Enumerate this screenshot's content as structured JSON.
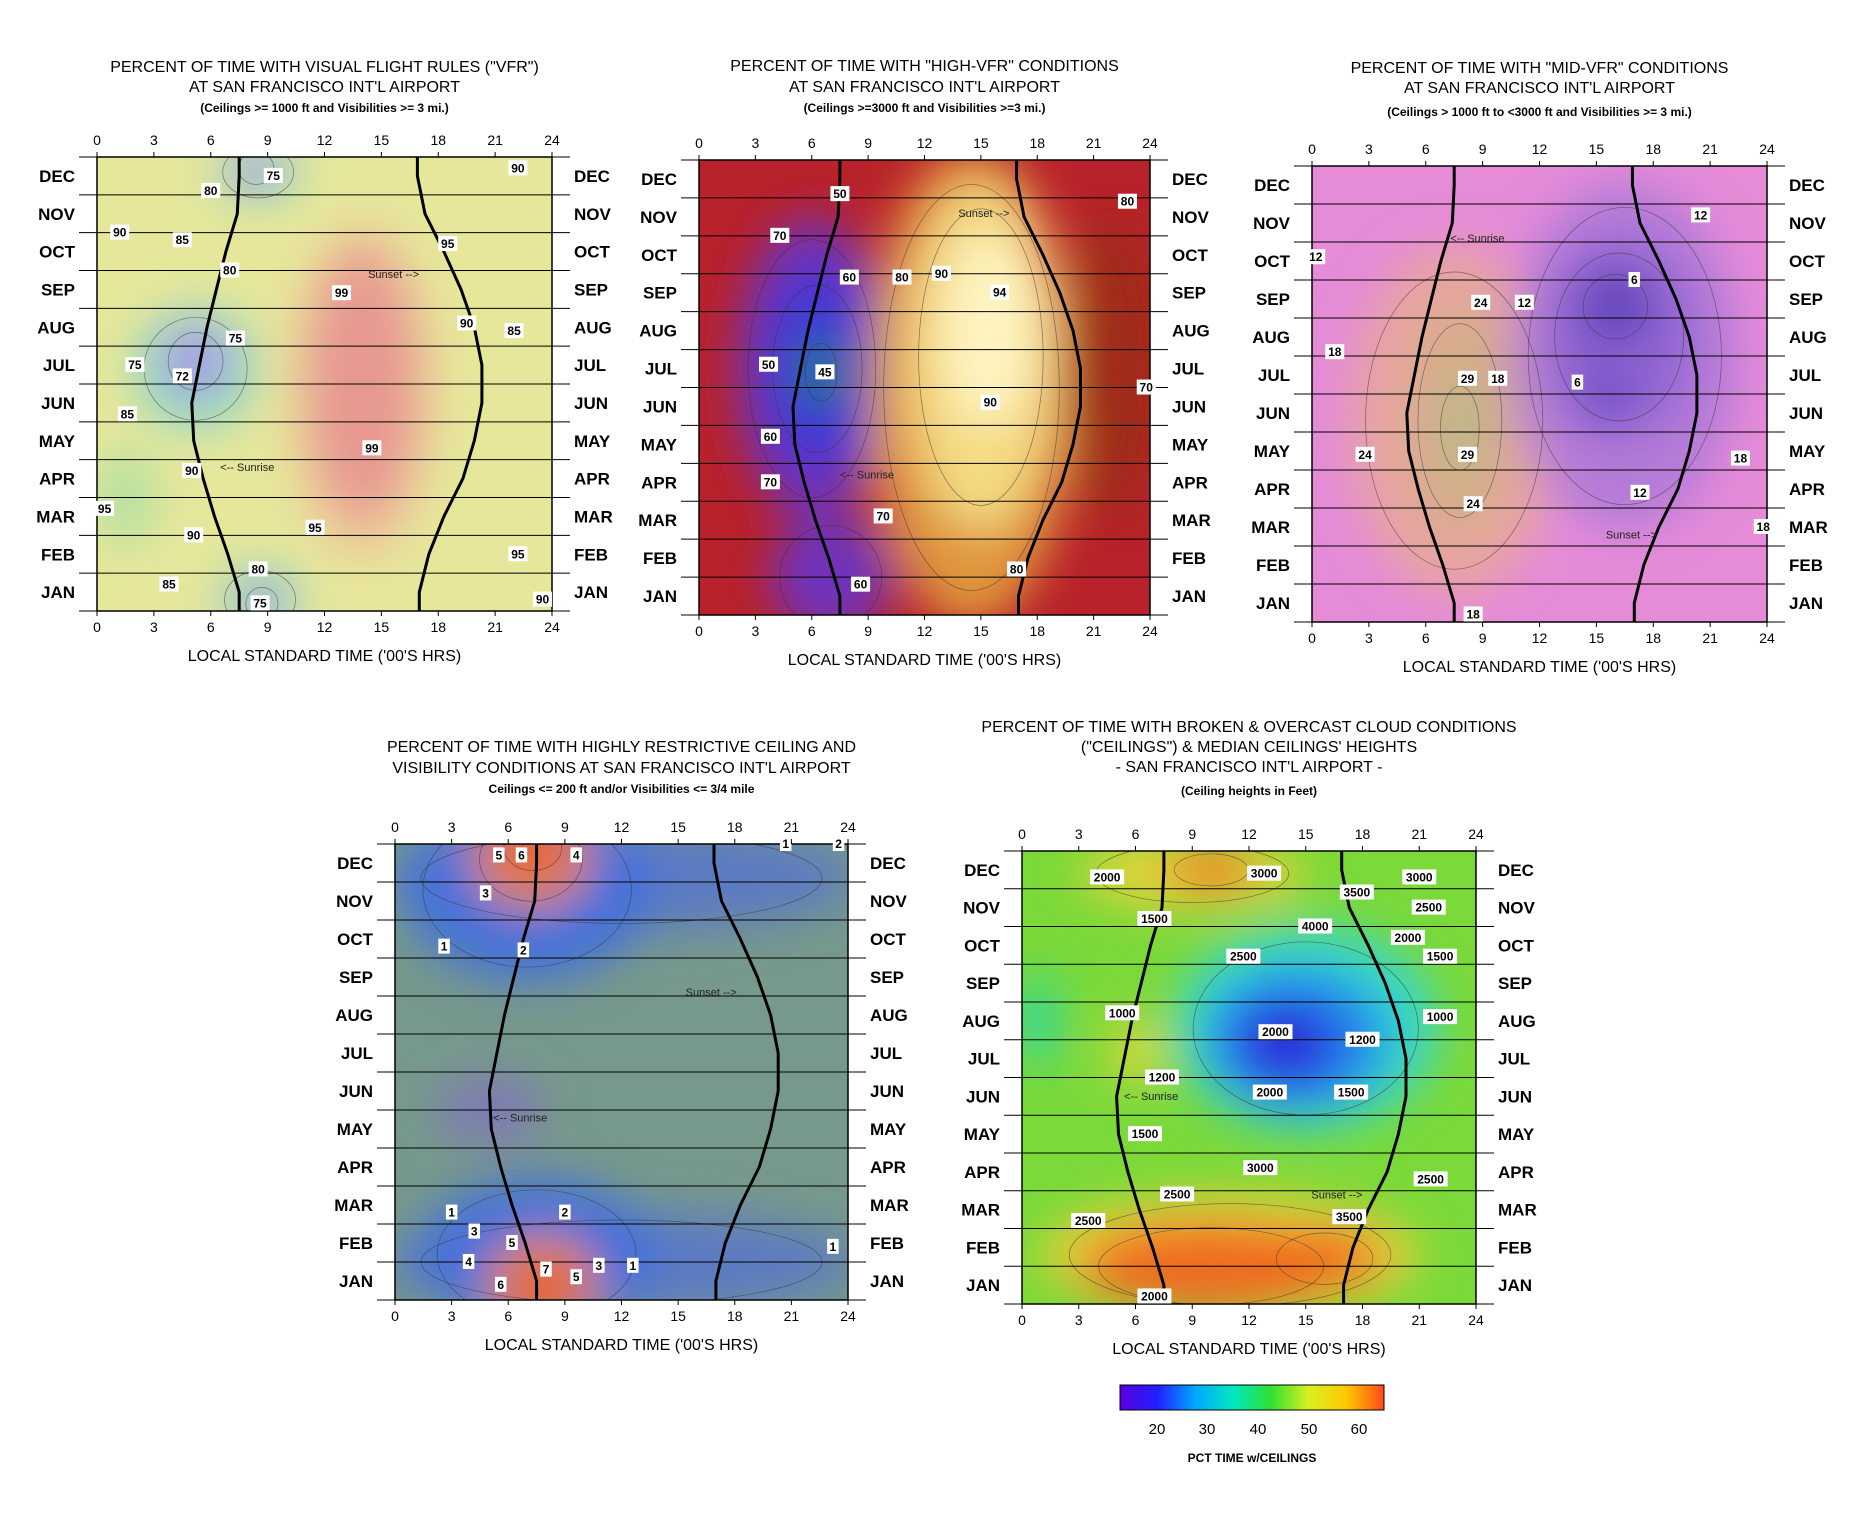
{
  "months": [
    "DEC",
    "NOV",
    "OCT",
    "SEP",
    "AUG",
    "JUL",
    "JUN",
    "MAY",
    "APR",
    "MAR",
    "FEB",
    "JAN"
  ],
  "hour_ticks": [
    "0",
    "3",
    "6",
    "9",
    "12",
    "15",
    "18",
    "21",
    "24"
  ],
  "colors": {
    "sun_line": "#000000",
    "grid_line": "#000000",
    "label_bg": "#ffffff"
  },
  "panels": [
    {
      "id": "vfr",
      "title_lines": [
        "PERCENT OF TIME WITH VISUAL FLIGHT RULES (\"VFR\")",
        "AT SAN FRANCISCO INT'L AIRPORT"
      ],
      "subtitle": "(Ceilings >= 1000 ft and Visibilities >= 3 mi.)",
      "xlabel": "LOCAL STANDARD TIME ('00'S HRS)",
      "sunrise_label": "<-- Sunrise",
      "sunset_label": "Sunset -->",
      "sunrise_text_at": [
        6.5,
        3.7
      ],
      "sunset_text_at": [
        14.3,
        8.8
      ],
      "palette": {
        "base": "#e6e79a",
        "blobs": [
          {
            "x": 5.2,
            "y": 6.4,
            "rx": 3.2,
            "ry": 1.6,
            "c": "#7fd6cc"
          },
          {
            "x": 5.2,
            "y": 6.6,
            "rx": 1.7,
            "ry": 0.9,
            "c": "#b48de8"
          },
          {
            "x": 8.5,
            "y": 11.6,
            "rx": 2.2,
            "ry": 0.8,
            "c": "#8fd6c8"
          },
          {
            "x": 8.4,
            "y": 11.7,
            "rx": 1.1,
            "ry": 0.5,
            "c": "#a98be6"
          },
          {
            "x": 8.6,
            "y": 0.3,
            "rx": 2.2,
            "ry": 0.9,
            "c": "#8fd6c8"
          },
          {
            "x": 8.7,
            "y": 0.2,
            "rx": 1.0,
            "ry": 0.5,
            "c": "#a98be6"
          },
          {
            "x": 14.0,
            "y": 5.8,
            "rx": 3.8,
            "ry": 4.4,
            "c": "#eec29a"
          },
          {
            "x": 14.0,
            "y": 6.0,
            "rx": 2.8,
            "ry": 3.6,
            "c": "#e79690"
          },
          {
            "x": 1.5,
            "y": 3.0,
            "rx": 1.6,
            "ry": 1.3,
            "c": "#b0e0a4"
          }
        ]
      },
      "contour_labels": [
        {
          "t": "80",
          "x": 6.0,
          "y": 11.1
        },
        {
          "t": "90",
          "x": 1.2,
          "y": 10.0
        },
        {
          "t": "85",
          "x": 4.5,
          "y": 9.8
        },
        {
          "t": "80",
          "x": 7.0,
          "y": 9.0
        },
        {
          "t": "99",
          "x": 12.9,
          "y": 8.4
        },
        {
          "t": "75",
          "x": 7.3,
          "y": 7.2
        },
        {
          "t": "75",
          "x": 2.0,
          "y": 6.5
        },
        {
          "t": "72",
          "x": 4.5,
          "y": 6.2
        },
        {
          "t": "85",
          "x": 1.6,
          "y": 5.2
        },
        {
          "t": "99",
          "x": 14.5,
          "y": 4.3
        },
        {
          "t": "90",
          "x": 5.0,
          "y": 3.7
        },
        {
          "t": "95",
          "x": 0.4,
          "y": 2.7
        },
        {
          "t": "95",
          "x": 11.5,
          "y": 2.2
        },
        {
          "t": "90",
          "x": 5.1,
          "y": 2.0
        },
        {
          "t": "80",
          "x": 8.5,
          "y": 1.1
        },
        {
          "t": "85",
          "x": 3.8,
          "y": 0.7
        },
        {
          "t": "75",
          "x": 8.6,
          "y": 0.2
        },
        {
          "t": "95",
          "x": 22.2,
          "y": 1.5
        },
        {
          "t": "90",
          "x": 23.5,
          "y": 0.3
        },
        {
          "t": "95",
          "x": 18.5,
          "y": 9.7
        },
        {
          "t": "90",
          "x": 19.5,
          "y": 7.6
        },
        {
          "t": "85",
          "x": 22.0,
          "y": 7.4
        },
        {
          "t": "90",
          "x": 22.2,
          "y": 11.7
        },
        {
          "t": "75",
          "x": 9.3,
          "y": 11.5
        }
      ]
    },
    {
      "id": "high-vfr",
      "title_lines": [
        "PERCENT OF TIME WITH \"HIGH-VFR\" CONDITIONS",
        "AT SAN FRANCISCO INT'L AIRPORT"
      ],
      "subtitle": "(Ceilings >=3000 ft and Visibilities >=3 mi.)",
      "xlabel": "LOCAL STANDARD TIME ('00'S HRS)",
      "sunrise_label": "<-- Sunrise",
      "sunset_label": "Sunset -->",
      "sunrise_text_at": [
        7.5,
        3.6
      ],
      "sunset_text_at": [
        13.8,
        10.5
      ],
      "palette": {
        "base": "#b8222a",
        "blobs": [
          {
            "x": 6.0,
            "y": 6.5,
            "rx": 4.0,
            "ry": 4.0,
            "c": "#6a33c8"
          },
          {
            "x": 6.3,
            "y": 6.5,
            "rx": 2.8,
            "ry": 2.6,
            "c": "#3b38d8"
          },
          {
            "x": 6.5,
            "y": 6.4,
            "rx": 1.0,
            "ry": 0.9,
            "c": "#0a8a58"
          },
          {
            "x": 7.0,
            "y": 1.0,
            "rx": 3.2,
            "ry": 1.6,
            "c": "#6a33c8"
          },
          {
            "x": 14.5,
            "y": 6.0,
            "rx": 5.5,
            "ry": 6.3,
            "c": "#e3a13c"
          },
          {
            "x": 15.0,
            "y": 6.8,
            "rx": 3.9,
            "ry": 4.6,
            "c": "#f5df8a"
          },
          {
            "x": 15.4,
            "y": 7.5,
            "rx": 2.4,
            "ry": 2.5,
            "c": "#fff6c8"
          },
          {
            "x": 22.0,
            "y": 6.5,
            "rx": 2.4,
            "ry": 4.0,
            "c": "#9c2e1a"
          }
        ]
      },
      "contour_labels": [
        {
          "t": "50",
          "x": 7.5,
          "y": 11.1
        },
        {
          "t": "70",
          "x": 4.3,
          "y": 10.0
        },
        {
          "t": "60",
          "x": 8.0,
          "y": 8.9
        },
        {
          "t": "80",
          "x": 10.8,
          "y": 8.9
        },
        {
          "t": "90",
          "x": 12.9,
          "y": 9.0
        },
        {
          "t": "94",
          "x": 16.0,
          "y": 8.5
        },
        {
          "t": "50",
          "x": 3.7,
          "y": 6.6
        },
        {
          "t": "45",
          "x": 6.7,
          "y": 6.4
        },
        {
          "t": "60",
          "x": 3.8,
          "y": 4.7
        },
        {
          "t": "90",
          "x": 15.5,
          "y": 5.6
        },
        {
          "t": "70",
          "x": 3.8,
          "y": 3.5
        },
        {
          "t": "70",
          "x": 9.8,
          "y": 2.6
        },
        {
          "t": "60",
          "x": 8.6,
          "y": 0.8
        },
        {
          "t": "80",
          "x": 16.9,
          "y": 1.2
        },
        {
          "t": "80",
          "x": 22.8,
          "y": 10.9
        },
        {
          "t": "70",
          "x": 23.8,
          "y": 6.0
        }
      ]
    },
    {
      "id": "mid-vfr",
      "title_lines": [
        "PERCENT OF TIME WITH \"MID-VFR\" CONDITIONS",
        "AT SAN FRANCISCO INT'L AIRPORT"
      ],
      "subtitle": "(Ceilings > 1000 ft to <3000 ft and  Visibilities >= 3 mi.)",
      "xlabel": "LOCAL STANDARD TIME ('00'S HRS)",
      "sunrise_label": "<-- Sunrise",
      "sunset_label": "Sunset -->",
      "sunrise_text_at": [
        7.3,
        10.0
      ],
      "sunset_text_at": [
        15.5,
        2.2
      ],
      "palette": {
        "base": "#e58bd8",
        "blobs": [
          {
            "x": 7.5,
            "y": 5.3,
            "rx": 5.5,
            "ry": 4.6,
            "c": "#e7a79a"
          },
          {
            "x": 7.8,
            "y": 5.3,
            "rx": 2.6,
            "ry": 3.0,
            "c": "#d2b086"
          },
          {
            "x": 7.8,
            "y": 5.1,
            "rx": 1.2,
            "ry": 1.3,
            "c": "#b9b98c"
          },
          {
            "x": 16.5,
            "y": 7.0,
            "rx": 6.0,
            "ry": 4.6,
            "c": "#b07ad8"
          },
          {
            "x": 16.2,
            "y": 7.5,
            "rx": 4.0,
            "ry": 2.6,
            "c": "#8e64d2"
          },
          {
            "x": 16.0,
            "y": 8.3,
            "rx": 2.0,
            "ry": 1.0,
            "c": "#5d42b8"
          },
          {
            "x": 15.5,
            "y": 5.9,
            "rx": 1.5,
            "ry": 0.8,
            "c": "#6f4ec4"
          }
        ]
      },
      "contour_labels": [
        {
          "t": "12",
          "x": 20.5,
          "y": 10.7
        },
        {
          "t": "12",
          "x": 0.2,
          "y": 9.6
        },
        {
          "t": "24",
          "x": 8.9,
          "y": 8.4
        },
        {
          "t": "12",
          "x": 11.2,
          "y": 8.4
        },
        {
          "t": "6",
          "x": 17.0,
          "y": 9.0
        },
        {
          "t": "18",
          "x": 1.2,
          "y": 7.1
        },
        {
          "t": "29",
          "x": 8.2,
          "y": 6.4
        },
        {
          "t": "18",
          "x": 9.8,
          "y": 6.4
        },
        {
          "t": "6",
          "x": 14.0,
          "y": 6.3
        },
        {
          "t": "24",
          "x": 2.8,
          "y": 4.4
        },
        {
          "t": "29",
          "x": 8.2,
          "y": 4.4
        },
        {
          "t": "18",
          "x": 22.6,
          "y": 4.3
        },
        {
          "t": "12",
          "x": 17.3,
          "y": 3.4
        },
        {
          "t": "24",
          "x": 8.5,
          "y": 3.1
        },
        {
          "t": "18",
          "x": 23.8,
          "y": 2.5
        },
        {
          "t": "18",
          "x": 8.5,
          "y": 0.2
        }
      ]
    },
    {
      "id": "restrictive",
      "title_lines": [
        "PERCENT OF TIME WITH HIGHLY RESTRICTIVE CEILING AND",
        "VISIBILITY CONDITIONS  AT SAN FRANCISCO INT'L AIRPORT"
      ],
      "subtitle": "Ceilings <= 200 ft and/or Visibilities <= 3/4 mile",
      "xlabel": "LOCAL STANDARD TIME ('00'S HRS)",
      "sunrise_label": "<-- Sunrise",
      "sunset_label": "Sunset -->",
      "sunrise_text_at": [
        5.2,
        4.7
      ],
      "sunset_text_at": [
        15.4,
        8.0
      ],
      "palette": {
        "base": "#77998c",
        "blobs": [
          {
            "x": 12.0,
            "y": 11.1,
            "rx": 12.5,
            "ry": 1.4,
            "c": "#5a78c8"
          },
          {
            "x": 7.0,
            "y": 10.8,
            "rx": 6.5,
            "ry": 2.4,
            "c": "#3f6fe0"
          },
          {
            "x": 7.2,
            "y": 11.6,
            "rx": 3.2,
            "ry": 1.3,
            "c": "#f08a3c"
          },
          {
            "x": 7.3,
            "y": 11.9,
            "rx": 1.8,
            "ry": 0.7,
            "c": "#e84a20"
          },
          {
            "x": 12.0,
            "y": 1.0,
            "rx": 12.5,
            "ry": 1.3,
            "c": "#5a78c8"
          },
          {
            "x": 7.5,
            "y": 1.2,
            "rx": 6.2,
            "ry": 2.0,
            "c": "#3f6fe0"
          },
          {
            "x": 7.8,
            "y": 0.5,
            "rx": 3.0,
            "ry": 1.2,
            "c": "#f08a3c"
          },
          {
            "x": 7.9,
            "y": 0.3,
            "rx": 1.6,
            "ry": 0.7,
            "c": "#e84a20"
          },
          {
            "x": 5.0,
            "y": 5.0,
            "rx": 2.8,
            "ry": 0.9,
            "c": "#7f78b8"
          }
        ]
      },
      "contour_labels": [
        {
          "t": "5",
          "x": 5.5,
          "y": 11.7
        },
        {
          "t": "6",
          "x": 6.7,
          "y": 11.7
        },
        {
          "t": "4",
          "x": 9.6,
          "y": 11.7
        },
        {
          "t": "3",
          "x": 4.8,
          "y": 10.7
        },
        {
          "t": "1",
          "x": 2.6,
          "y": 9.3
        },
        {
          "t": "2",
          "x": 6.8,
          "y": 9.2
        },
        {
          "t": "1",
          "x": 20.7,
          "y": 12.0
        },
        {
          "t": "2",
          "x": 23.5,
          "y": 12.0
        },
        {
          "t": "1",
          "x": 3.0,
          "y": 2.3
        },
        {
          "t": "2",
          "x": 9.0,
          "y": 2.3
        },
        {
          "t": "3",
          "x": 4.2,
          "y": 1.8
        },
        {
          "t": "5",
          "x": 6.2,
          "y": 1.5
        },
        {
          "t": "4",
          "x": 3.9,
          "y": 1.0
        },
        {
          "t": "7",
          "x": 8.0,
          "y": 0.8
        },
        {
          "t": "5",
          "x": 9.6,
          "y": 0.6
        },
        {
          "t": "3",
          "x": 10.8,
          "y": 0.9
        },
        {
          "t": "1",
          "x": 12.6,
          "y": 0.9
        },
        {
          "t": "6",
          "x": 5.6,
          "y": 0.4
        },
        {
          "t": "1",
          "x": 23.2,
          "y": 1.4
        }
      ]
    },
    {
      "id": "ceilings",
      "title_lines": [
        "PERCENT OF TIME WITH BROKEN & OVERCAST CLOUD CONDITIONS",
        "(\"CEILINGS\")  & MEDIAN CEILINGS' HEIGHTS",
        "- SAN FRANCISCO INT'L AIRPORT -"
      ],
      "subtitle": "(Ceiling heights in Feet)",
      "xlabel": "LOCAL STANDARD TIME ('00'S HRS)",
      "sunrise_label": "<-- Sunrise",
      "sunset_label": "Sunset -->",
      "sunrise_text_at": [
        5.4,
        5.4
      ],
      "sunset_text_at": [
        15.3,
        2.8
      ],
      "palette": {
        "base": "#7bd93a",
        "blobs": [
          {
            "x": 11.0,
            "y": 1.3,
            "rx": 10.0,
            "ry": 1.6,
            "c": "#f2d23a"
          },
          {
            "x": 10.0,
            "y": 1.0,
            "rx": 7.0,
            "ry": 1.2,
            "c": "#f0621e"
          },
          {
            "x": 16.0,
            "y": 1.2,
            "rx": 3.0,
            "ry": 0.8,
            "c": "#f0621e"
          },
          {
            "x": 9.0,
            "y": 11.4,
            "rx": 6.0,
            "ry": 0.9,
            "c": "#f2d23a"
          },
          {
            "x": 10.0,
            "y": 11.5,
            "rx": 2.3,
            "ry": 0.5,
            "c": "#f0621e"
          },
          {
            "x": 15.0,
            "y": 7.3,
            "rx": 7.0,
            "ry": 2.7,
            "c": "#30d8d8"
          },
          {
            "x": 14.5,
            "y": 7.0,
            "rx": 4.8,
            "ry": 1.9,
            "c": "#2080f0"
          },
          {
            "x": 14.0,
            "y": 6.9,
            "rx": 2.7,
            "ry": 1.1,
            "c": "#2a28d8"
          },
          {
            "x": 6.0,
            "y": 6.7,
            "rx": 1.3,
            "ry": 0.9,
            "c": "#e8d83a"
          },
          {
            "x": 0.8,
            "y": 7.5,
            "rx": 1.0,
            "ry": 1.2,
            "c": "#20d8b8"
          }
        ]
      },
      "contour_labels": [
        {
          "t": "2000",
          "x": 4.5,
          "y": 11.3
        },
        {
          "t": "3000",
          "x": 12.8,
          "y": 11.4
        },
        {
          "t": "3500",
          "x": 17.7,
          "y": 10.9
        },
        {
          "t": "3000",
          "x": 21.0,
          "y": 11.3
        },
        {
          "t": "2500",
          "x": 21.5,
          "y": 10.5
        },
        {
          "t": "1500",
          "x": 7.0,
          "y": 10.2
        },
        {
          "t": "4000",
          "x": 15.5,
          "y": 10.0
        },
        {
          "t": "2000",
          "x": 20.4,
          "y": 9.7
        },
        {
          "t": "2500",
          "x": 11.7,
          "y": 9.2
        },
        {
          "t": "1500",
          "x": 22.1,
          "y": 9.2
        },
        {
          "t": "1000",
          "x": 5.3,
          "y": 7.7
        },
        {
          "t": "1000",
          "x": 22.1,
          "y": 7.6
        },
        {
          "t": "2000",
          "x": 13.4,
          "y": 7.2
        },
        {
          "t": "1200",
          "x": 18.0,
          "y": 7.0
        },
        {
          "t": "1200",
          "x": 7.4,
          "y": 6.0
        },
        {
          "t": "2000",
          "x": 13.1,
          "y": 5.6
        },
        {
          "t": "1500",
          "x": 17.4,
          "y": 5.6
        },
        {
          "t": "1500",
          "x": 6.5,
          "y": 4.5
        },
        {
          "t": "3000",
          "x": 12.6,
          "y": 3.6
        },
        {
          "t": "2500",
          "x": 8.2,
          "y": 2.9
        },
        {
          "t": "2500",
          "x": 21.6,
          "y": 3.3
        },
        {
          "t": "3500",
          "x": 17.3,
          "y": 2.3
        },
        {
          "t": "2500",
          "x": 3.5,
          "y": 2.2
        },
        {
          "t": "2000",
          "x": 7.0,
          "y": 0.2
        }
      ],
      "colorbar": {
        "ticks": [
          "20",
          "30",
          "40",
          "50",
          "60"
        ],
        "label": "PCT TIME w/CEILINGS",
        "stops": [
          "#5a00e0",
          "#2020ff",
          "#00a8ff",
          "#00e8c0",
          "#30e030",
          "#d8f020",
          "#ffc800",
          "#ff4a1a"
        ]
      }
    }
  ],
  "sunrise_hours": [
    7.5,
    7.4,
    6.8,
    6.3,
    5.8,
    5.4,
    5.0,
    5.1,
    5.6,
    6.2,
    6.9,
    7.5
  ],
  "sunset_hours": [
    16.9,
    17.3,
    18.3,
    19.2,
    19.9,
    20.3,
    20.3,
    19.9,
    19.3,
    18.3,
    17.5,
    17.0
  ]
}
